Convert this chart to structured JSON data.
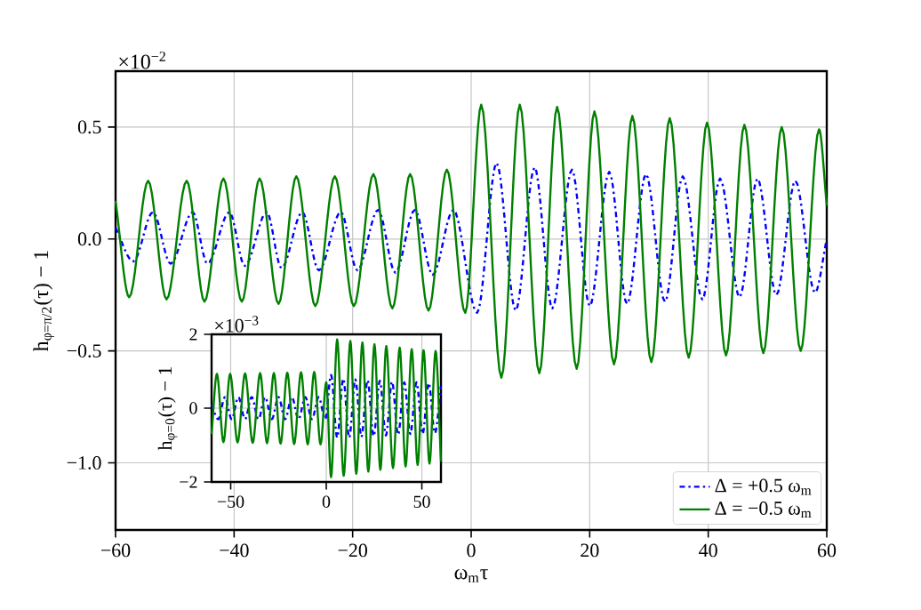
{
  "chart_data": [
    {
      "type": "line",
      "xlabel": "ω$_{m}$τ",
      "ylabel": "h$_{φ=π/2}$(τ) − 1",
      "annotations": [
        "×10$^{−2}$"
      ],
      "xlim": [
        -60,
        60
      ],
      "ylim": [
        -1.3,
        0.75
      ],
      "xticks": [
        {
          "value": -60,
          "label": "−60"
        },
        {
          "value": -40,
          "label": "−40"
        },
        {
          "value": -20,
          "label": "−20"
        },
        0,
        20,
        40,
        60
      ],
      "yticks": [
        {
          "value": -1,
          "label": "−1.0"
        },
        {
          "value": -0.5,
          "label": "−0.5"
        },
        {
          "value": 0,
          "label": "0.0"
        },
        0.5
      ],
      "grid": true,
      "legend": "bottom right",
      "series": [
        {
          "name": "Δ = +0.5 ω$_{m}$",
          "color": "#0000ff",
          "line_style": "dashdot",
          "x": [
            -60,
            -57,
            -53.7,
            -50.7,
            -47,
            -44.5,
            -40.8,
            -38.2,
            -34.5,
            -32,
            -28.5,
            -25.7,
            -22,
            -19.2,
            -15.7,
            -12.8,
            -9.5,
            -6.5,
            -3.0,
            1.0,
            4.3,
            7.5,
            10.7,
            13.7,
            17,
            20,
            23.3,
            26.3,
            29.5,
            32.7,
            35.7,
            39,
            42,
            45.3,
            48.3,
            51.5,
            54.7,
            58,
            60
          ],
          "values": [
            0.05,
            -0.1,
            0.12,
            -0.11,
            0.12,
            -0.11,
            0.12,
            -0.12,
            0.12,
            -0.13,
            0.12,
            -0.14,
            0.12,
            -0.14,
            0.13,
            -0.15,
            0.13,
            -0.16,
            0.13,
            -0.33,
            0.34,
            -0.32,
            0.32,
            -0.31,
            0.31,
            -0.3,
            0.3,
            -0.29,
            0.29,
            -0.28,
            0.28,
            -0.27,
            0.27,
            -0.26,
            0.27,
            -0.25,
            0.26,
            -0.24,
            0.0
          ]
        },
        {
          "name": "Δ = −0.5 ω$_{m}$",
          "color": "#008000",
          "line_style": "solid",
          "x": [
            -60,
            -57.7,
            -54.5,
            -51.4,
            -48,
            -45,
            -41.8,
            -38.7,
            -35.7,
            -32.5,
            -29.5,
            -26.3,
            -23,
            -19.8,
            -16.5,
            -13.3,
            -10.3,
            -7.2,
            -4.1,
            -1.0,
            1.7,
            5.1,
            8.2,
            11.5,
            14.5,
            17.8,
            20.8,
            24.1,
            27.2,
            30.4,
            33.5,
            36.7,
            39.8,
            43,
            46.1,
            49.3,
            52.4,
            55.6,
            58.7,
            60
          ],
          "values": [
            0.17,
            -0.26,
            0.26,
            -0.27,
            0.26,
            -0.28,
            0.27,
            -0.28,
            0.27,
            -0.29,
            0.28,
            -0.3,
            0.28,
            -0.3,
            0.29,
            -0.31,
            0.29,
            -0.32,
            0.31,
            -0.33,
            0.6,
            -0.62,
            0.6,
            -0.6,
            0.59,
            -0.58,
            0.57,
            -0.56,
            0.55,
            -0.55,
            0.54,
            -0.53,
            0.52,
            -0.52,
            0.51,
            -0.51,
            0.5,
            -0.5,
            0.49,
            0.15
          ]
        }
      ]
    },
    {
      "type": "line",
      "ylabel": "h$_{φ=0}$(τ) − 1",
      "annotations": [
        "×10$^{−3}$"
      ],
      "xlim": [
        -60,
        60
      ],
      "ylim": [
        -2,
        2
      ],
      "xticks": [
        {
          "value": -50,
          "label": "−50"
        },
        0,
        50
      ],
      "yticks": [
        {
          "value": -2,
          "label": "−2"
        },
        0,
        2
      ],
      "grid": true,
      "series": [
        {
          "color": "#0000ff",
          "line_style": "dashdot",
          "x": [
            -60,
            -56.5,
            -53,
            -49.5,
            -46,
            -42.5,
            -39,
            -35.5,
            -32,
            -28.5,
            -25,
            -21.5,
            -18,
            -14.5,
            -11,
            -7.5,
            -4,
            -0.5,
            2.5,
            5.7,
            8.9,
            12,
            15.2,
            18.4,
            21.6,
            24.8,
            28,
            31.2,
            34.4,
            37.6,
            40.8,
            44,
            47.2,
            50.4,
            53.6,
            56.8,
            60
          ],
          "values": [
            0.1,
            -0.3,
            0.3,
            -0.3,
            0.3,
            -0.3,
            0.3,
            -0.3,
            0.3,
            -0.3,
            0.3,
            -0.3,
            0.3,
            -0.3,
            0.3,
            -0.3,
            0.3,
            -0.3,
            0.9,
            -0.8,
            0.8,
            -0.8,
            0.78,
            -0.78,
            0.76,
            -0.76,
            0.74,
            -0.74,
            0.72,
            -0.72,
            0.7,
            -0.7,
            0.7,
            -0.7,
            0.68,
            -0.68,
            0.6
          ]
        },
        {
          "color": "#008000",
          "line_style": "solid",
          "x": [
            -60,
            -57.2,
            -53.8,
            -50.3,
            -46.4,
            -42.5,
            -38.5,
            -34.6,
            -31,
            -27.4,
            -23.9,
            -20.4,
            -16.8,
            -13.2,
            -9.7,
            -6.3,
            -3,
            0,
            2.5,
            5.7,
            9.1,
            12.6,
            15.7,
            18.9,
            22,
            25.2,
            28.3,
            31.4,
            34.9,
            38.4,
            41.5,
            44.7,
            47.8,
            50.9,
            54,
            57.2,
            60
          ],
          "values": [
            -0.7,
            0.93,
            -0.92,
            0.93,
            -0.93,
            0.94,
            -0.94,
            0.95,
            -0.95,
            0.95,
            -0.96,
            0.96,
            -0.97,
            0.97,
            -0.98,
            0.98,
            -0.98,
            0.7,
            -1.87,
            1.86,
            -1.83,
            1.82,
            -1.78,
            1.78,
            -1.72,
            1.73,
            -1.67,
            1.68,
            -1.62,
            1.64,
            -1.58,
            1.6,
            -1.54,
            1.57,
            -1.5,
            1.55,
            -1.45
          ]
        }
      ]
    }
  ]
}
